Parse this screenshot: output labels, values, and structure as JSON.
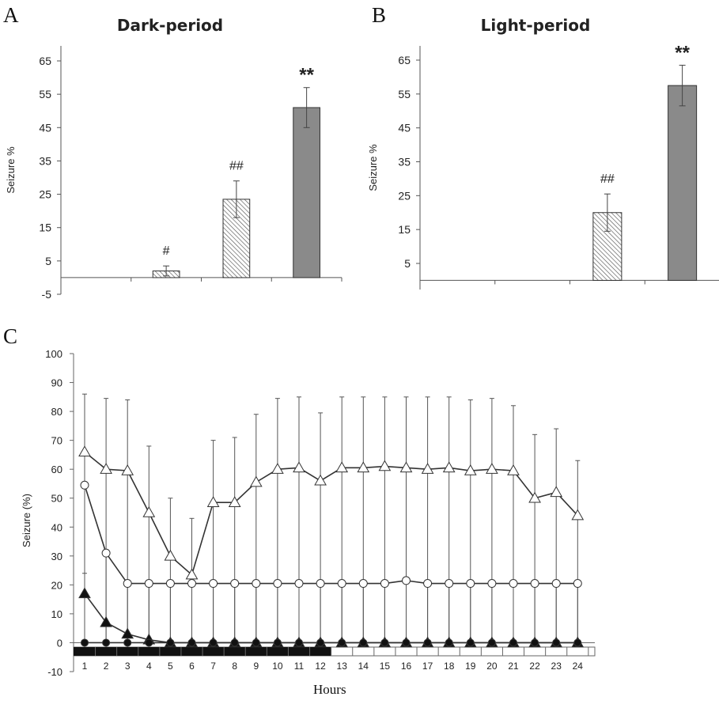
{
  "panels": {
    "A": {
      "letter": "A",
      "chart_data": {
        "type": "bar",
        "title": "Dark-period",
        "ylabel": "Seizure %",
        "ylim": [
          -5,
          70
        ],
        "yticks": [
          -5,
          5,
          15,
          25,
          35,
          45,
          55,
          65
        ],
        "grid": false,
        "bars": [
          {
            "value": 0,
            "error": 0,
            "fill": "none",
            "label": ""
          },
          {
            "value": 2,
            "error": 1.5,
            "fill": "hatched",
            "label": "#"
          },
          {
            "value": 23.5,
            "error": 5.5,
            "fill": "hatched",
            "label": "##"
          },
          {
            "value": 51,
            "error": 6,
            "fill": "grey",
            "label": "**"
          }
        ]
      }
    },
    "B": {
      "letter": "B",
      "chart_data": {
        "type": "bar",
        "title": "Light-period",
        "ylabel": "Seizure %",
        "ylim": [
          0,
          70
        ],
        "yticks": [
          5,
          15,
          25,
          35,
          45,
          55,
          65
        ],
        "grid": false,
        "bars": [
          {
            "value": 0,
            "error": 0,
            "fill": "none",
            "label": ""
          },
          {
            "value": 0,
            "error": 0,
            "fill": "none",
            "label": ""
          },
          {
            "value": 20,
            "error": 5.5,
            "fill": "hatched",
            "label": "##"
          },
          {
            "value": 57.5,
            "error": 6,
            "fill": "grey",
            "label": "**"
          }
        ]
      }
    },
    "C": {
      "letter": "C",
      "chart_data": {
        "type": "line",
        "xlabel": "Hours",
        "ylabel": "Seizure (%)",
        "ylim": [
          -10,
          100
        ],
        "yticks": [
          -10,
          0,
          10,
          20,
          30,
          40,
          50,
          60,
          70,
          80,
          90,
          100
        ],
        "x": [
          1,
          2,
          3,
          4,
          5,
          6,
          7,
          8,
          9,
          10,
          11,
          12,
          13,
          14,
          15,
          16,
          17,
          18,
          19,
          20,
          21,
          22,
          23,
          24
        ],
        "grid": false,
        "dark_bar_hours": [
          1,
          12
        ],
        "series": [
          {
            "marker": "open-triangle",
            "values": [
              66,
              60,
              59.5,
              45,
              30,
              23.5,
              48.5,
              48.5,
              55.5,
              60,
              60.5,
              56,
              60.5,
              60.5,
              61,
              60.5,
              60,
              60.5,
              59.5,
              60,
              59.5,
              50,
              52,
              44
            ],
            "err_high": [
              86,
              84.5,
              84,
              68,
              50,
              43,
              70,
              71,
              79,
              84.5,
              85,
              79.5,
              85,
              85,
              85,
              85,
              85,
              85,
              84,
              84.5,
              82,
              72,
              74,
              63
            ],
            "err_low": [
              0,
              0,
              0,
              0,
              0,
              0,
              0,
              0,
              0,
              0,
              0,
              0,
              0,
              0,
              0,
              0,
              0,
              0,
              0,
              0,
              0,
              0,
              0,
              0
            ]
          },
          {
            "marker": "open-circle",
            "values": [
              54.5,
              31,
              20.5,
              20.5,
              20.5,
              20.5,
              20.5,
              20.5,
              20.5,
              20.5,
              20.5,
              20.5,
              20.5,
              20.5,
              20.5,
              21.5,
              20.5,
              20.5,
              20.5,
              20.5,
              20.5,
              20.5,
              20.5,
              20.5
            ],
            "err_high": null,
            "err_low": [
              32,
              0,
              0,
              0,
              0,
              0,
              0,
              0,
              0,
              0,
              0,
              0,
              0,
              0,
              0,
              0,
              0,
              0,
              0,
              0,
              0,
              0,
              0,
              0
            ]
          },
          {
            "marker": "filled-triangle",
            "values": [
              17,
              7,
              3,
              1,
              0,
              0,
              0,
              0,
              0,
              0,
              0,
              0,
              0,
              0,
              0,
              0,
              0,
              0,
              0,
              0,
              0,
              0,
              0,
              0
            ],
            "err_high": [
              24,
              null,
              null,
              null,
              null,
              null,
              null,
              null,
              null,
              null,
              null,
              null,
              null,
              null,
              null,
              null,
              null,
              null,
              null,
              null,
              null,
              null,
              null,
              null
            ],
            "err_low": [
              9,
              null,
              null,
              null,
              null,
              null,
              null,
              null,
              null,
              null,
              null,
              null,
              null,
              null,
              null,
              null,
              null,
              null,
              null,
              null,
              null,
              null,
              null,
              null
            ]
          },
          {
            "marker": "filled-circle",
            "values": [
              0,
              0,
              0,
              0,
              0,
              0,
              0,
              0,
              0,
              0,
              0,
              0,
              0,
              0,
              0,
              0,
              0,
              0,
              0,
              0,
              0,
              0,
              0,
              0
            ],
            "err_high": null,
            "err_low": null
          }
        ]
      }
    }
  }
}
